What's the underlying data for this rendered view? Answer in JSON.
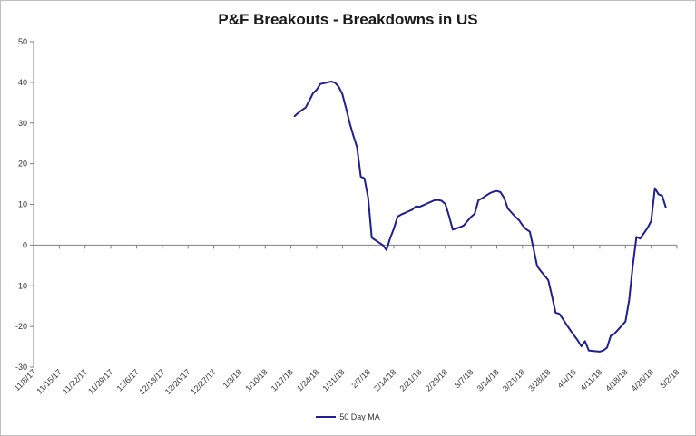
{
  "chart_data": {
    "type": "line",
    "title": "P&F Breakouts - Breakdowns in US",
    "xlabel": "",
    "ylabel": "",
    "x_ticks": [
      "11/8/17",
      "11/15/17",
      "11/22/17",
      "11/29/17",
      "12/6/17",
      "12/13/17",
      "12/20/17",
      "12/27/17",
      "1/3/18",
      "1/10/18",
      "1/17/18",
      "1/24/18",
      "1/31/18",
      "2/7/18",
      "2/14/18",
      "2/21/18",
      "2/28/18",
      "3/7/18",
      "3/14/18",
      "3/21/18",
      "3/28/18",
      "4/4/18",
      "4/11/18",
      "4/18/18",
      "4/25/18",
      "5/2/18"
    ],
    "x_range": [
      "11/8/17",
      "5/2/18"
    ],
    "ylim": [
      -30,
      50
    ],
    "y_ticks": [
      50,
      40,
      30,
      20,
      10,
      0,
      -10,
      -20,
      -30
    ],
    "grid": false,
    "legend_position": "bottom",
    "series": [
      {
        "name": "50 Day MA",
        "color": "#1f1f8f",
        "points": [
          [
            "1/18/18",
            31.7
          ],
          [
            "1/19/18",
            32.5
          ],
          [
            "1/20/18",
            33.2
          ],
          [
            "1/21/18",
            33.8
          ],
          [
            "1/22/18",
            35.5
          ],
          [
            "1/23/18",
            37.3
          ],
          [
            "1/24/18",
            38.2
          ],
          [
            "1/25/18",
            39.6
          ],
          [
            "1/26/18",
            39.8
          ],
          [
            "1/27/18",
            40.0
          ],
          [
            "1/28/18",
            40.2
          ],
          [
            "1/29/18",
            39.9
          ],
          [
            "1/30/18",
            38.9
          ],
          [
            "1/31/18",
            37.1
          ],
          [
            "2/1/18",
            33.6
          ],
          [
            "2/2/18",
            30.0
          ],
          [
            "2/3/18",
            26.8
          ],
          [
            "2/4/18",
            24.0
          ],
          [
            "2/5/18",
            16.8
          ],
          [
            "2/6/18",
            16.4
          ],
          [
            "2/7/18",
            11.7
          ],
          [
            "2/8/18",
            1.8
          ],
          [
            "2/9/18",
            1.2
          ],
          [
            "2/10/18",
            0.6
          ],
          [
            "2/11/18",
            0.0
          ],
          [
            "2/12/18",
            -1.2
          ],
          [
            "2/13/18",
            1.7
          ],
          [
            "2/14/18",
            4.0
          ],
          [
            "2/15/18",
            7.0
          ],
          [
            "2/16/18",
            7.5
          ],
          [
            "2/17/18",
            7.9
          ],
          [
            "2/18/18",
            8.3
          ],
          [
            "2/19/18",
            8.7
          ],
          [
            "2/20/18",
            9.5
          ],
          [
            "2/21/18",
            9.4
          ],
          [
            "2/22/18",
            9.8
          ],
          [
            "2/23/18",
            10.2
          ],
          [
            "2/24/18",
            10.6
          ],
          [
            "2/25/18",
            11.0
          ],
          [
            "2/26/18",
            11.1
          ],
          [
            "2/27/18",
            10.9
          ],
          [
            "2/28/18",
            10.1
          ],
          [
            "3/1/18",
            7.2
          ],
          [
            "3/2/18",
            3.8
          ],
          [
            "3/3/18",
            4.1
          ],
          [
            "3/4/18",
            4.4
          ],
          [
            "3/5/18",
            4.8
          ],
          [
            "3/6/18",
            5.9
          ],
          [
            "3/7/18",
            6.9
          ],
          [
            "3/8/18",
            7.7
          ],
          [
            "3/9/18",
            11.0
          ],
          [
            "3/10/18",
            11.5
          ],
          [
            "3/11/18",
            12.1
          ],
          [
            "3/12/18",
            12.7
          ],
          [
            "3/13/18",
            13.1
          ],
          [
            "3/14/18",
            13.3
          ],
          [
            "3/15/18",
            13.0
          ],
          [
            "3/16/18",
            11.6
          ],
          [
            "3/17/18",
            9.0
          ],
          [
            "3/18/18",
            8.0
          ],
          [
            "3/19/18",
            7.0
          ],
          [
            "3/20/18",
            6.2
          ],
          [
            "3/21/18",
            4.9
          ],
          [
            "3/22/18",
            3.9
          ],
          [
            "3/23/18",
            3.3
          ],
          [
            "3/24/18",
            -0.9
          ],
          [
            "3/25/18",
            -5.2
          ],
          [
            "3/26/18",
            -6.4
          ],
          [
            "3/27/18",
            -7.5
          ],
          [
            "3/28/18",
            -8.6
          ],
          [
            "3/29/18",
            -12.5
          ],
          [
            "3/30/18",
            -16.6
          ],
          [
            "3/31/18",
            -16.9
          ],
          [
            "4/1/18",
            -18.2
          ],
          [
            "4/2/18",
            -19.6
          ],
          [
            "4/3/18",
            -20.9
          ],
          [
            "4/4/18",
            -22.2
          ],
          [
            "4/5/18",
            -23.4
          ],
          [
            "4/6/18",
            -24.9
          ],
          [
            "4/7/18",
            -23.6
          ],
          [
            "4/8/18",
            -25.9
          ],
          [
            "4/9/18",
            -26.0
          ],
          [
            "4/10/18",
            -26.1
          ],
          [
            "4/11/18",
            -26.2
          ],
          [
            "4/12/18",
            -25.9
          ],
          [
            "4/13/18",
            -25.2
          ],
          [
            "4/14/18",
            -22.3
          ],
          [
            "4/15/18",
            -21.8
          ],
          [
            "4/16/18",
            -20.8
          ],
          [
            "4/17/18",
            -19.8
          ],
          [
            "4/18/18",
            -18.8
          ],
          [
            "4/19/18",
            -13.6
          ],
          [
            "4/20/18",
            -5.0
          ],
          [
            "4/21/18",
            2.0
          ],
          [
            "4/22/18",
            1.6
          ],
          [
            "4/23/18",
            2.9
          ],
          [
            "4/24/18",
            4.2
          ],
          [
            "4/25/18",
            5.9
          ],
          [
            "4/26/18",
            14.0
          ],
          [
            "4/27/18",
            12.5
          ],
          [
            "4/28/18",
            12.1
          ],
          [
            "4/29/18",
            9.2
          ]
        ]
      }
    ]
  }
}
